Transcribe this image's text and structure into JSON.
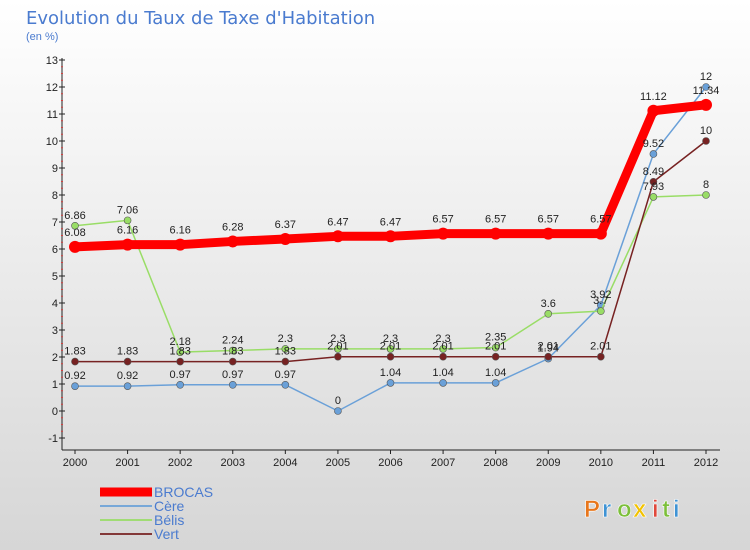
{
  "chart_data": {
    "type": "line",
    "title": "Evolution du Taux de Taxe d'Habitation",
    "subtitle": "(en %)",
    "x": [
      "2000",
      "2001",
      "2002",
      "2003",
      "2004",
      "2005",
      "2006",
      "2007",
      "2008",
      "2009",
      "2010",
      "2011",
      "2012"
    ],
    "ylim": [
      -1,
      13
    ],
    "yticks": [
      -1,
      0,
      1,
      2,
      3,
      4,
      5,
      6,
      7,
      8,
      9,
      10,
      11,
      12,
      13
    ],
    "grid": false,
    "legend_position": "bottom-left",
    "series": [
      {
        "name": "BROCAS",
        "color": "#ff0000",
        "values": [
          6.08,
          6.16,
          6.16,
          6.28,
          6.37,
          6.47,
          6.47,
          6.57,
          6.57,
          6.57,
          6.57,
          11.12,
          11.34
        ],
        "labels": [
          "6.08",
          "6.16",
          "6.16",
          "6.28",
          "6.37",
          "6.47",
          "6.47",
          "6.57",
          "6.57",
          "6.57",
          "6.57",
          "11.12",
          "11.34"
        ]
      },
      {
        "name": "Cère",
        "color": "#6aa0d8",
        "values": [
          0.92,
          0.92,
          0.97,
          0.97,
          0.97,
          0,
          1.04,
          1.04,
          1.04,
          1.94,
          3.92,
          9.52,
          12
        ],
        "labels": [
          "0.92",
          "0.92",
          "0.97",
          "0.97",
          "0.97",
          "0",
          "1.04",
          "1.04",
          "1.04",
          "1.94",
          "3.92",
          "9.52",
          "12"
        ]
      },
      {
        "name": "Bélis",
        "color": "#99dd66",
        "values": [
          6.86,
          7.06,
          2.18,
          2.24,
          2.3,
          2.3,
          2.3,
          2.3,
          2.35,
          3.6,
          3.7,
          7.93,
          8
        ],
        "labels": [
          "6.86",
          "7.06",
          "2.18",
          "2.24",
          "2.3",
          "2.3",
          "2.3",
          "2.3",
          "2.35",
          "3.6",
          "3.7",
          "7.93",
          "8"
        ]
      },
      {
        "name": "Vert",
        "color": "#772222",
        "values": [
          1.83,
          1.83,
          1.83,
          1.83,
          1.83,
          2.01,
          2.01,
          2.01,
          2.01,
          2.01,
          2.01,
          8.49,
          10
        ],
        "labels": [
          "1.83",
          "1.83",
          "1.83",
          "1.83",
          "1.83",
          "2.01",
          "2.01",
          "2.01",
          "2.01",
          "2.01",
          "2.01",
          "8.49",
          "10"
        ]
      }
    ]
  },
  "branding": {
    "logo_text": "Proxiti",
    "logo_colors": [
      "#e8761b",
      "#3f93d4",
      "#7cbf3a",
      "#f2c200",
      "#e0483b",
      "#7cbf3a",
      "#3f93d4"
    ]
  }
}
